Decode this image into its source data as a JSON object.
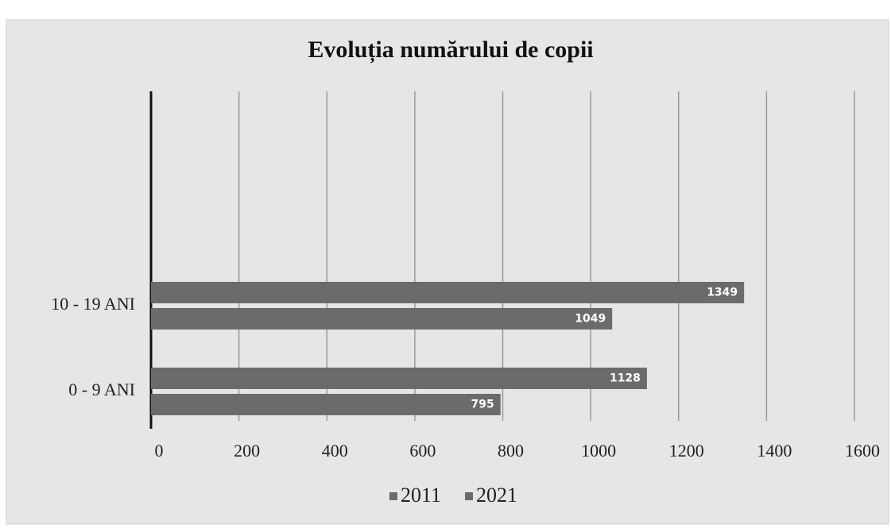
{
  "chart_data": {
    "type": "bar",
    "orientation": "horizontal",
    "title": "Evoluția numărului de copii",
    "categories": [
      "0 - 9 ANI",
      "10 - 19 ANI"
    ],
    "series": [
      {
        "name": "2011",
        "color": "#6b6b6b",
        "values": [
          795,
          1049
        ]
      },
      {
        "name": "2021",
        "color": "#6b6b6b",
        "values": [
          1128,
          1349
        ]
      }
    ],
    "xlim": [
      0,
      1600
    ],
    "xticks": [
      0,
      200,
      400,
      600,
      800,
      1000,
      1200,
      1400,
      1600
    ],
    "grid": true,
    "legend": "bottom"
  }
}
